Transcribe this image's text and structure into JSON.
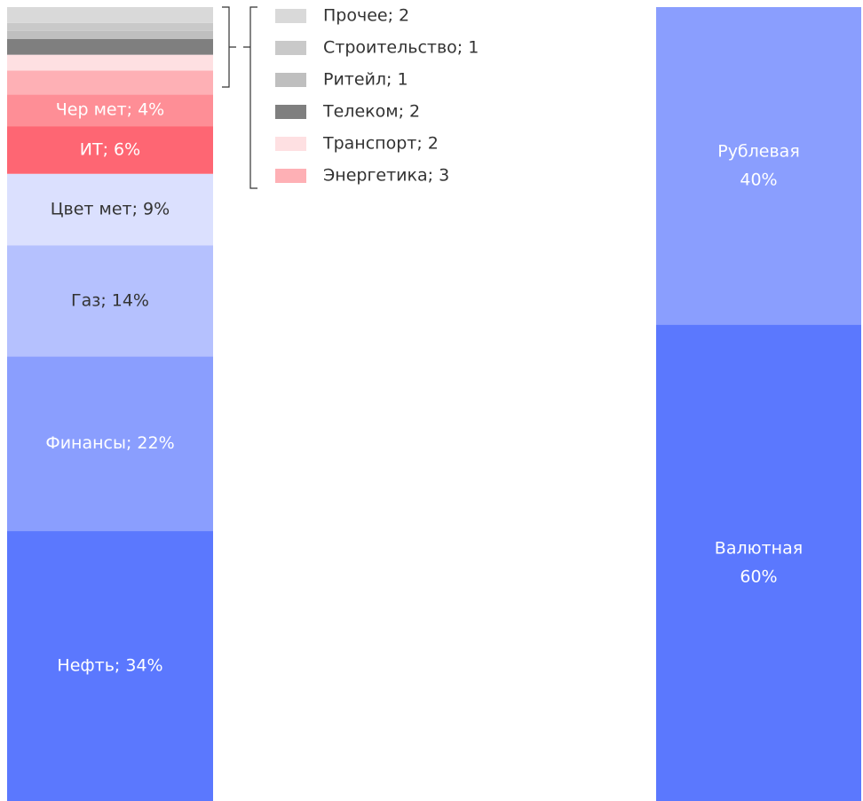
{
  "chart_data": [
    {
      "type": "stacked-bar",
      "ylim": [
        0,
        100
      ],
      "series": [
        {
          "color": "#5b78fe",
          "values": [
            34
          ],
          "value_labels": [
            "Нефть; 34%"
          ]
        },
        {
          "color": "#8a9efe",
          "values": [
            22
          ],
          "value_labels": [
            "Финансы; 22%"
          ]
        },
        {
          "color": "#b5c1fe",
          "values": [
            14
          ],
          "value_labels": [
            "Газ; 14%"
          ]
        },
        {
          "color": "#dbe0fe",
          "values": [
            9
          ],
          "value_labels": [
            "Цвет мет; 9%"
          ]
        },
        {
          "color": "#fe6673",
          "values": [
            6
          ],
          "value_labels": [
            "ИТ; 6%"
          ]
        },
        {
          "color": "#fe8e96",
          "values": [
            4
          ],
          "value_labels": [
            "Чер мет; 4%"
          ]
        },
        {
          "color": "#feb0b5",
          "values": [
            3
          ],
          "value_labels": [
            "Энергетика; 3"
          ]
        },
        {
          "color": "#fee0e2",
          "values": [
            2
          ],
          "value_labels": [
            "Транспорт; 2"
          ]
        },
        {
          "color": "#7f7f7f",
          "values": [
            2
          ],
          "value_labels": [
            "Телеком; 2"
          ]
        },
        {
          "color": "#bfbfbf",
          "values": [
            1
          ],
          "value_labels": [
            "Ритейл; 1"
          ]
        },
        {
          "color": "#c9c9c9",
          "values": [
            1
          ],
          "value_labels": [
            "Строительство; 1"
          ]
        },
        {
          "color": "#d9d9d9",
          "values": [
            2
          ],
          "value_labels": [
            "Прочее; 2"
          ]
        }
      ]
    },
    {
      "type": "stacked-bar",
      "ylim": [
        0,
        100
      ],
      "series": [
        {
          "name": "Валютная",
          "color": "#5b78fe",
          "values": [
            60
          ],
          "value_labels": [
            "60%"
          ]
        },
        {
          "name": "Рублевая",
          "color": "#8a9efe",
          "values": [
            40
          ],
          "value_labels": [
            "40%"
          ]
        }
      ]
    }
  ]
}
